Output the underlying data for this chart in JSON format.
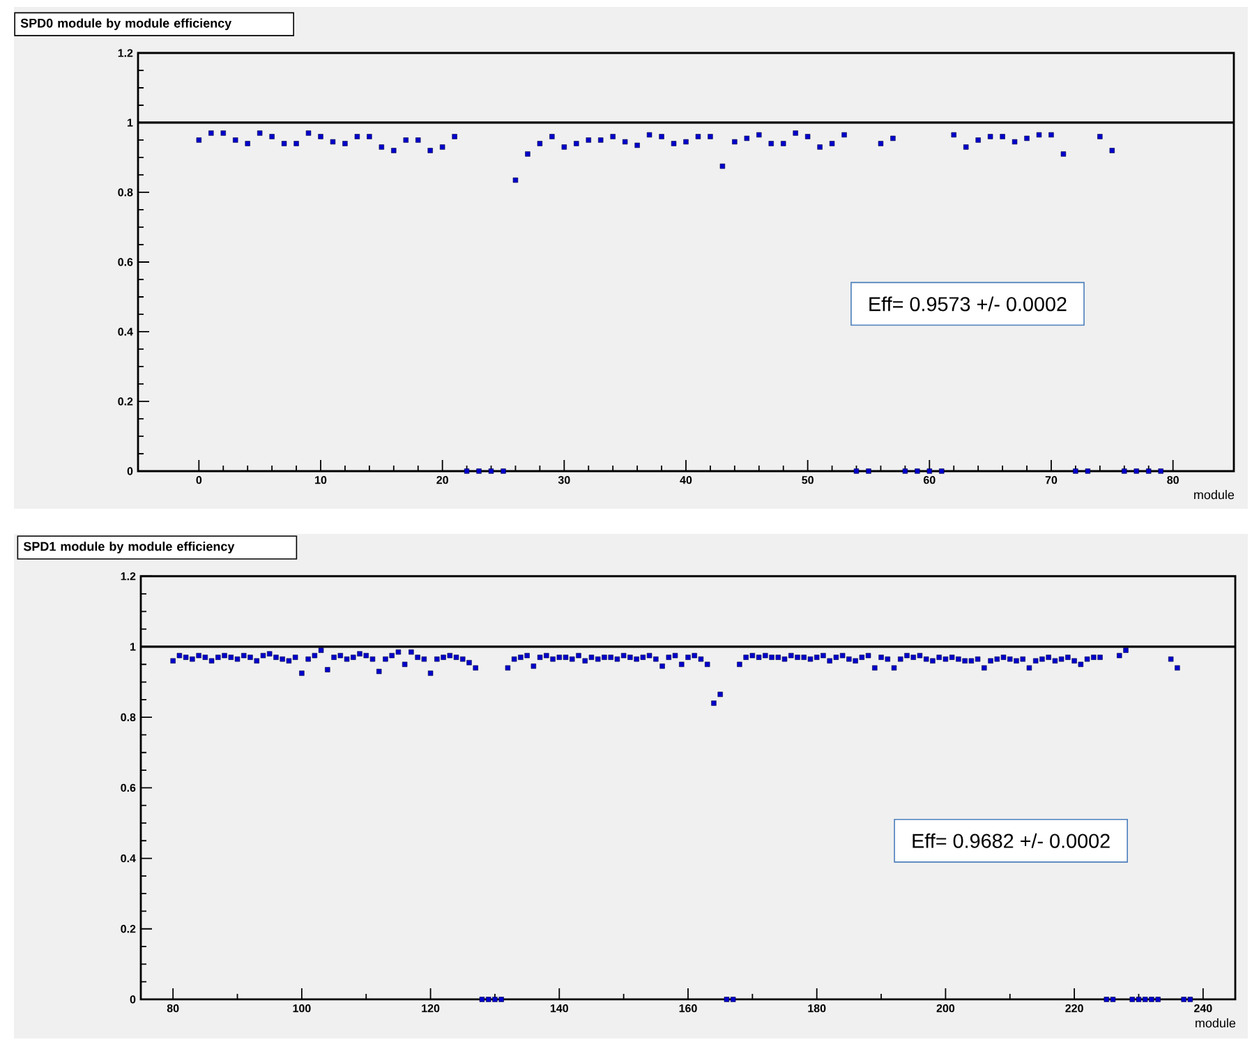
{
  "chart_data": [
    {
      "type": "scatter",
      "title": "SPD0 module by module efficiency",
      "xlabel": "module",
      "xlim": [
        -5,
        85
      ],
      "ylim": [
        0,
        1.2
      ],
      "xticks": [
        0,
        10,
        20,
        30,
        40,
        50,
        60,
        70,
        80
      ],
      "yticks": [
        0,
        0.2,
        0.4,
        0.6,
        0.8,
        1,
        1.2
      ],
      "marker": "square",
      "x": [
        0,
        1,
        2,
        3,
        4,
        5,
        6,
        7,
        8,
        9,
        10,
        11,
        12,
        13,
        14,
        15,
        16,
        17,
        18,
        19,
        20,
        21,
        22,
        23,
        24,
        25,
        26,
        27,
        28,
        29,
        30,
        31,
        32,
        33,
        34,
        35,
        36,
        37,
        38,
        39,
        40,
        41,
        42,
        43,
        44,
        45,
        46,
        47,
        48,
        49,
        50,
        51,
        52,
        53,
        54,
        55,
        56,
        57,
        58,
        59,
        60,
        61,
        62,
        63,
        64,
        65,
        66,
        67,
        68,
        69,
        70,
        71,
        72,
        73,
        74,
        75,
        76,
        77,
        78,
        79
      ],
      "series": [
        {
          "color": "#0000cc",
          "values": [
            0.95,
            0.97,
            0.97,
            0.95,
            0.94,
            0.97,
            0.96,
            0.94,
            0.94,
            0.97,
            0.96,
            0.945,
            0.94,
            0.96,
            0.96,
            0.93,
            0.92,
            0.95,
            0.95,
            0.92,
            0.93,
            0.96,
            0,
            0,
            0,
            0,
            0.835,
            0.91,
            0.94,
            0.96,
            0.93,
            0.94,
            0.95,
            0.95,
            0.96,
            0.945,
            0.935,
            0.965,
            0.96,
            0.94,
            0.945,
            0.96,
            0.96,
            0.875,
            0.945,
            0.955,
            0.965,
            0.94,
            0.94,
            0.97,
            0.96,
            0.93,
            0.94,
            0.965,
            0,
            0,
            0.94,
            0.955,
            0,
            0,
            0,
            0,
            0.965,
            0.93,
            0.95,
            0.96,
            0.96,
            0.945,
            0.955,
            0.965,
            0.965,
            0.91,
            0,
            0,
            0.96,
            0.92,
            0,
            0,
            0,
            0
          ]
        }
      ],
      "ref_lines": [
        {
          "axis": "y",
          "value": 1,
          "color": "#000000"
        }
      ],
      "annotations": [
        "Eff= 0.9573 +/- 0.0002"
      ]
    },
    {
      "type": "scatter",
      "title": "SPD1 module by module efficiency",
      "xlabel": "module",
      "xlim": [
        75,
        245
      ],
      "ylim": [
        0,
        1.2
      ],
      "xticks": [
        80,
        100,
        120,
        140,
        160,
        180,
        200,
        220,
        240
      ],
      "yticks": [
        0,
        0.2,
        0.4,
        0.6,
        0.8,
        1,
        1.2
      ],
      "marker": "square",
      "x": [
        80,
        81,
        82,
        83,
        84,
        85,
        86,
        87,
        88,
        89,
        90,
        91,
        92,
        93,
        94,
        95,
        96,
        97,
        98,
        99,
        100,
        101,
        102,
        103,
        104,
        105,
        106,
        107,
        108,
        109,
        110,
        111,
        112,
        113,
        114,
        115,
        116,
        117,
        118,
        119,
        120,
        121,
        122,
        123,
        124,
        125,
        126,
        127,
        128,
        129,
        130,
        131,
        132,
        133,
        134,
        135,
        136,
        137,
        138,
        139,
        140,
        141,
        142,
        143,
        144,
        145,
        146,
        147,
        148,
        149,
        150,
        151,
        152,
        153,
        154,
        155,
        156,
        157,
        158,
        159,
        160,
        161,
        162,
        163,
        164,
        165,
        166,
        167,
        168,
        169,
        170,
        171,
        172,
        173,
        174,
        175,
        176,
        177,
        178,
        179,
        180,
        181,
        182,
        183,
        184,
        185,
        186,
        187,
        188,
        189,
        190,
        191,
        192,
        193,
        194,
        195,
        196,
        197,
        198,
        199,
        200,
        201,
        202,
        203,
        204,
        205,
        206,
        207,
        208,
        209,
        210,
        211,
        212,
        213,
        214,
        215,
        216,
        217,
        218,
        219,
        220,
        221,
        222,
        223,
        224,
        225,
        226,
        227,
        228,
        229,
        230,
        231,
        232,
        233,
        234,
        235,
        236,
        237,
        238
      ],
      "series": [
        {
          "color": "#0000cc",
          "values": [
            0.96,
            0.975,
            0.97,
            0.965,
            0.975,
            0.97,
            0.96,
            0.97,
            0.975,
            0.97,
            0.965,
            0.975,
            0.97,
            0.96,
            0.975,
            0.98,
            0.97,
            0.965,
            0.96,
            0.97,
            0.925,
            0.965,
            0.975,
            0.99,
            0.935,
            0.97,
            0.975,
            0.965,
            0.97,
            0.98,
            0.975,
            0.965,
            0.93,
            0.965,
            0.975,
            0.985,
            0.95,
            0.985,
            0.97,
            0.965,
            0.925,
            0.965,
            0.97,
            0.975,
            0.97,
            0.965,
            0.955,
            0.94,
            0,
            0,
            0,
            0,
            0.94,
            0.965,
            0.97,
            0.975,
            0.945,
            0.97,
            0.975,
            0.965,
            0.97,
            0.97,
            0.965,
            0.975,
            0.96,
            0.97,
            0.965,
            0.97,
            0.97,
            0.965,
            0.975,
            0.97,
            0.965,
            0.97,
            0.975,
            0.965,
            0.945,
            0.97,
            0.975,
            0.95,
            0.97,
            0.975,
            0.965,
            0.95,
            0.84,
            0.865,
            0,
            0,
            0.95,
            0.97,
            0.975,
            0.97,
            0.975,
            0.97,
            0.97,
            0.965,
            0.975,
            0.97,
            0.97,
            0.965,
            0.97,
            0.975,
            0.96,
            0.97,
            0.975,
            0.965,
            0.96,
            0.97,
            0.975,
            0.94,
            0.97,
            0.965,
            0.94,
            0.965,
            0.975,
            0.97,
            0.975,
            0.965,
            0.96,
            0.97,
            0.965,
            0.97,
            0.965,
            0.96,
            0.96,
            0.965,
            0.94,
            0.96,
            0.965,
            0.97,
            0.965,
            0.96,
            0.965,
            0.94,
            0.96,
            0.965,
            0.97,
            0.96,
            0.965,
            0.97,
            0.96,
            0.95,
            0.965,
            0.97,
            0.97,
            0,
            0,
            0.975,
            0.99,
            0,
            0,
            0,
            0,
            0,
            null,
            0.965,
            0.94,
            0,
            0
          ]
        }
      ],
      "ref_lines": [
        {
          "axis": "y",
          "value": 1,
          "color": "#000000"
        }
      ],
      "annotations": [
        "Eff= 0.9682 +/- 0.0002"
      ]
    }
  ]
}
